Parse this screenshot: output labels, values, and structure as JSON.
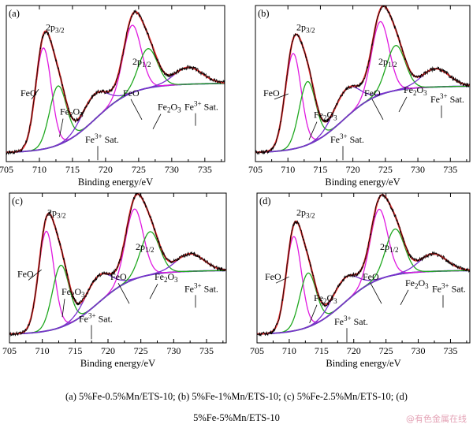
{
  "chart_data": [
    {
      "type": "line",
      "panel_label": "(a)",
      "xlabel": "Binding energy/eV",
      "ylabel": "",
      "xlim": [
        705,
        738
      ],
      "xticks": [
        "705",
        "710",
        "715",
        "720",
        "725",
        "730",
        "735"
      ],
      "annotations": [
        "2p3/2",
        "FeO",
        "Fe2O3",
        "Fe3+ Sat.",
        "2p1/2",
        "FeO",
        "Fe2O3",
        "Fe3+ Sat."
      ],
      "peaks": [
        {
          "name": "FeO 2p3/2",
          "center": 710.6,
          "height": 0.72,
          "fwhm": 2.8,
          "color": "#e01ae0"
        },
        {
          "name": "Fe2O3 2p3/2",
          "center": 712.8,
          "height": 0.42,
          "fwhm": 3.0,
          "color": "#1fa81f"
        },
        {
          "name": "Sat. 2p3/2",
          "center": 718.3,
          "height": 0.18,
          "fwhm": 4.5,
          "color": "#7a2fd0"
        },
        {
          "name": "FeO 2p1/2",
          "center": 724.0,
          "height": 0.48,
          "fwhm": 3.2,
          "color": "#e01ae0"
        },
        {
          "name": "Fe2O3 2p1/2",
          "center": 726.4,
          "height": 0.28,
          "fwhm": 3.4,
          "color": "#1fa81f"
        },
        {
          "name": "Sat. 2p1/2",
          "center": 732.5,
          "height": 0.12,
          "fwhm": 5.0,
          "color": "#7a2fd0"
        }
      ],
      "background": {
        "low": 0.04,
        "high": 0.52,
        "step_center": 718.5
      }
    },
    {
      "type": "line",
      "panel_label": "(b)",
      "xlabel": "Binding energy/eV",
      "ylabel": "",
      "xlim": [
        705,
        738
      ],
      "xticks": [
        "705",
        "710",
        "715",
        "720",
        "725",
        "730",
        "735"
      ],
      "annotations": [
        "2p3/2",
        "FeO",
        "Fe2O3",
        "Fe3+ Sat.",
        "2p1/2",
        "FeO",
        "Fe2O3",
        "Fe3+ Sat."
      ],
      "peaks": [
        {
          "name": "FeO 2p3/2",
          "center": 710.8,
          "height": 0.68,
          "fwhm": 2.9,
          "color": "#e01ae0"
        },
        {
          "name": "Fe2O3 2p3/2",
          "center": 713.0,
          "height": 0.45,
          "fwhm": 3.0,
          "color": "#1fa81f"
        },
        {
          "name": "Sat. 2p3/2",
          "center": 719.0,
          "height": 0.2,
          "fwhm": 4.6,
          "color": "#7a2fd0"
        },
        {
          "name": "FeO 2p1/2",
          "center": 724.2,
          "height": 0.52,
          "fwhm": 3.2,
          "color": "#e01ae0"
        },
        {
          "name": "Fe2O3 2p1/2",
          "center": 726.6,
          "height": 0.32,
          "fwhm": 3.4,
          "color": "#1fa81f"
        },
        {
          "name": "Sat. 2p1/2",
          "center": 732.7,
          "height": 0.13,
          "fwhm": 5.0,
          "color": "#7a2fd0"
        }
      ],
      "background": {
        "low": 0.04,
        "high": 0.5,
        "step_center": 718.5
      }
    },
    {
      "type": "line",
      "panel_label": "(c)",
      "xlabel": "Binding energy/eV",
      "ylabel": "",
      "xlim": [
        705,
        738
      ],
      "xticks": [
        "705",
        "710",
        "715",
        "720",
        "725",
        "730",
        "735"
      ],
      "annotations": [
        "2p3/2",
        "FeO",
        "Fe2O3",
        "Fe3+ Sat.",
        "2p1/2",
        "FeO",
        "Fe2O3",
        "Fe3+ Sat."
      ],
      "peaks": [
        {
          "name": "FeO 2p3/2",
          "center": 710.6,
          "height": 0.74,
          "fwhm": 2.8,
          "color": "#e01ae0"
        },
        {
          "name": "Fe2O3 2p3/2",
          "center": 712.8,
          "height": 0.46,
          "fwhm": 3.0,
          "color": "#1fa81f"
        },
        {
          "name": "Sat. 2p3/2",
          "center": 718.5,
          "height": 0.2,
          "fwhm": 4.6,
          "color": "#7a2fd0"
        },
        {
          "name": "FeO 2p1/2",
          "center": 724.0,
          "height": 0.52,
          "fwhm": 3.2,
          "color": "#e01ae0"
        },
        {
          "name": "Fe2O3 2p1/2",
          "center": 726.4,
          "height": 0.32,
          "fwhm": 3.4,
          "color": "#1fa81f"
        },
        {
          "name": "Sat. 2p1/2",
          "center": 732.5,
          "height": 0.13,
          "fwhm": 5.0,
          "color": "#7a2fd0"
        }
      ],
      "background": {
        "low": 0.04,
        "high": 0.5,
        "step_center": 718.5
      }
    },
    {
      "type": "line",
      "panel_label": "(d)",
      "xlabel": "Binding energy/eV",
      "ylabel": "",
      "xlim": [
        705,
        738
      ],
      "xticks": [
        "705",
        "710",
        "715",
        "720",
        "725",
        "730",
        "735"
      ],
      "annotations": [
        "2p3/2",
        "FeO",
        "Fe2O3",
        "Fe3+ Sat.",
        "2p1/2",
        "FeO",
        "Fe2O3",
        "Fe3+ Sat."
      ],
      "peaks": [
        {
          "name": "FeO 2p3/2",
          "center": 710.7,
          "height": 0.7,
          "fwhm": 2.8,
          "color": "#e01ae0"
        },
        {
          "name": "Fe2O3 2p3/2",
          "center": 712.9,
          "height": 0.4,
          "fwhm": 3.0,
          "color": "#1fa81f"
        },
        {
          "name": "Sat. 2p3/2",
          "center": 718.6,
          "height": 0.18,
          "fwhm": 4.6,
          "color": "#7a2fd0"
        },
        {
          "name": "FeO 2p1/2",
          "center": 723.9,
          "height": 0.52,
          "fwhm": 3.2,
          "color": "#e01ae0"
        },
        {
          "name": "Fe2O3 2p1/2",
          "center": 726.4,
          "height": 0.34,
          "fwhm": 3.4,
          "color": "#1fa81f"
        },
        {
          "name": "Sat. 2p1/2",
          "center": 732.3,
          "height": 0.13,
          "fwhm": 5.0,
          "color": "#7a2fd0"
        }
      ],
      "background": {
        "low": 0.04,
        "high": 0.5,
        "step_center": 718.5
      }
    }
  ],
  "colors": {
    "raw": "#000000",
    "envelope": "#e53030",
    "background": "#2020b0",
    "feo": "#e01ae0",
    "fe2o3": "#1fa81f",
    "satellite": "#7a2fd0"
  },
  "caption": {
    "line1": "(a) 5%Fe-0.5%Mn/ETS-10; (b) 5%Fe-1%Mn/ETS-10; (c) 5%Fe-2.5%Mn/ETS-10; (d)",
    "line2": "5%Fe-5%Mn/ETS-10"
  },
  "watermark": "@有色金属在线"
}
